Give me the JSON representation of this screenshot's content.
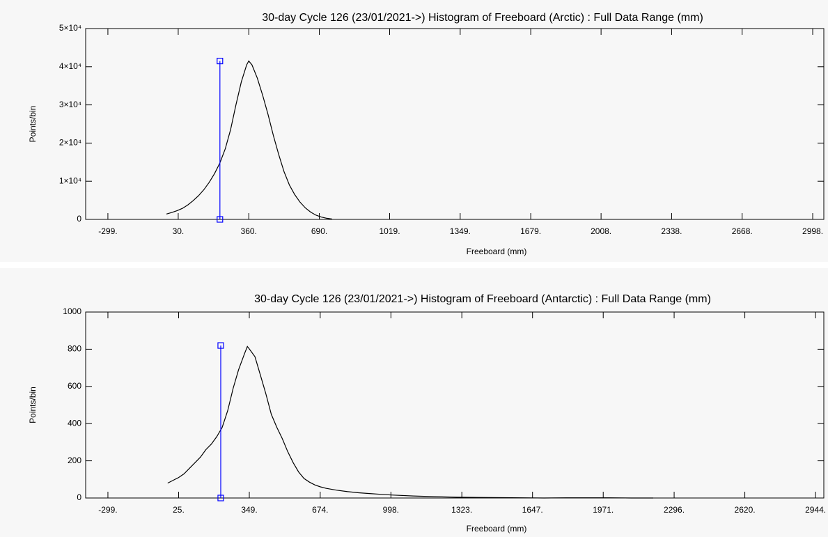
{
  "chart_data": [
    {
      "type": "line",
      "title": "30-day Cycle 126 (23/01/2021->) Histogram of Freeboard (Arctic) :  Full Data Range (mm)",
      "xlabel": "Freeboard (mm)",
      "ylabel": "Points/bin",
      "xlim": [
        -403,
        3050
      ],
      "ylim": [
        0,
        50000
      ],
      "xticks": [
        {
          "value": -299,
          "label": "-299."
        },
        {
          "value": 30,
          "label": "30."
        },
        {
          "value": 360,
          "label": "360."
        },
        {
          "value": 690,
          "label": "690."
        },
        {
          "value": 1019,
          "label": "1019."
        },
        {
          "value": 1349,
          "label": "1349."
        },
        {
          "value": 1679,
          "label": "1679."
        },
        {
          "value": 2008,
          "label": "2008."
        },
        {
          "value": 2338,
          "label": "2338."
        },
        {
          "value": 2668,
          "label": "2668."
        },
        {
          "value": 2998,
          "label": "2998."
        }
      ],
      "yticks": [
        0,
        {
          "value": 10000,
          "label": "1×10⁴"
        },
        {
          "value": 20000,
          "label": "2×10⁴"
        },
        {
          "value": 30000,
          "label": "3×10⁴"
        },
        {
          "value": 40000,
          "label": "4×10⁴"
        },
        {
          "value": 50000,
          "label": "5×10⁴"
        }
      ],
      "series": [
        {
          "color": "#000000",
          "x": [
            -25,
            0,
            25,
            50,
            75,
            100,
            125,
            150,
            175,
            200,
            225,
            250,
            275,
            300,
            325,
            350,
            360,
            375,
            400,
            425,
            450,
            475,
            500,
            525,
            550,
            575,
            600,
            625,
            650,
            675,
            700,
            725,
            750
          ],
          "values": [
            1400,
            1800,
            2300,
            2900,
            3800,
            4900,
            6200,
            7800,
            9700,
            12000,
            14800,
            18500,
            23500,
            30000,
            36000,
            40500,
            41500,
            40500,
            37000,
            32500,
            27500,
            22000,
            17000,
            12500,
            9000,
            6500,
            4500,
            3000,
            1900,
            1100,
            600,
            300,
            100
          ]
        },
        {
          "color": "#0000ff",
          "markers": "square",
          "x": [
            225,
            225
          ],
          "values": [
            0,
            41500
          ]
        }
      ]
    },
    {
      "type": "line",
      "title": "30-day Cycle 126 (23/01/2021->) Histogram of Freeboard (Antarctic) :  Full Data Range (mm)",
      "xlabel": "Freeboard (mm)",
      "ylabel": "Points/bin",
      "xlim": [
        -401,
        2982
      ],
      "ylim": [
        0,
        1000
      ],
      "xticks": [
        {
          "value": -299,
          "label": "-299."
        },
        {
          "value": 25,
          "label": "25."
        },
        {
          "value": 349,
          "label": "349."
        },
        {
          "value": 674,
          "label": "674."
        },
        {
          "value": 998,
          "label": "998."
        },
        {
          "value": 1323,
          "label": "1323."
        },
        {
          "value": 1647,
          "label": "1647."
        },
        {
          "value": 1971,
          "label": "1971."
        },
        {
          "value": 2296,
          "label": "2296."
        },
        {
          "value": 2620,
          "label": "2620."
        },
        {
          "value": 2944,
          "label": "2944."
        }
      ],
      "yticks": [
        0,
        200,
        400,
        600,
        800,
        1000
      ],
      "series": [
        {
          "color": "#000000",
          "x": [
            -25,
            0,
            25,
            50,
            75,
            100,
            125,
            150,
            175,
            200,
            225,
            250,
            275,
            300,
            325,
            340,
            350,
            375,
            400,
            425,
            450,
            475,
            500,
            525,
            550,
            575,
            600,
            625,
            650,
            675,
            700,
            750,
            800,
            850,
            900,
            950,
            1000,
            1100,
            1200,
            1300,
            1400,
            1500,
            1600,
            1700,
            1800,
            1900,
            2000,
            2100,
            2200
          ],
          "values": [
            80,
            95,
            110,
            130,
            160,
            190,
            220,
            260,
            290,
            330,
            380,
            470,
            590,
            690,
            770,
            815,
            800,
            760,
            660,
            560,
            450,
            380,
            320,
            250,
            190,
            140,
            105,
            85,
            70,
            60,
            52,
            42,
            34,
            28,
            24,
            20,
            16,
            11,
            7,
            4,
            3,
            2,
            1,
            0,
            1,
            1,
            1,
            0,
            0
          ]
        },
        {
          "color": "#0000ff",
          "markers": "square",
          "x": [
            218,
            218
          ],
          "values": [
            0,
            820
          ]
        }
      ]
    }
  ]
}
